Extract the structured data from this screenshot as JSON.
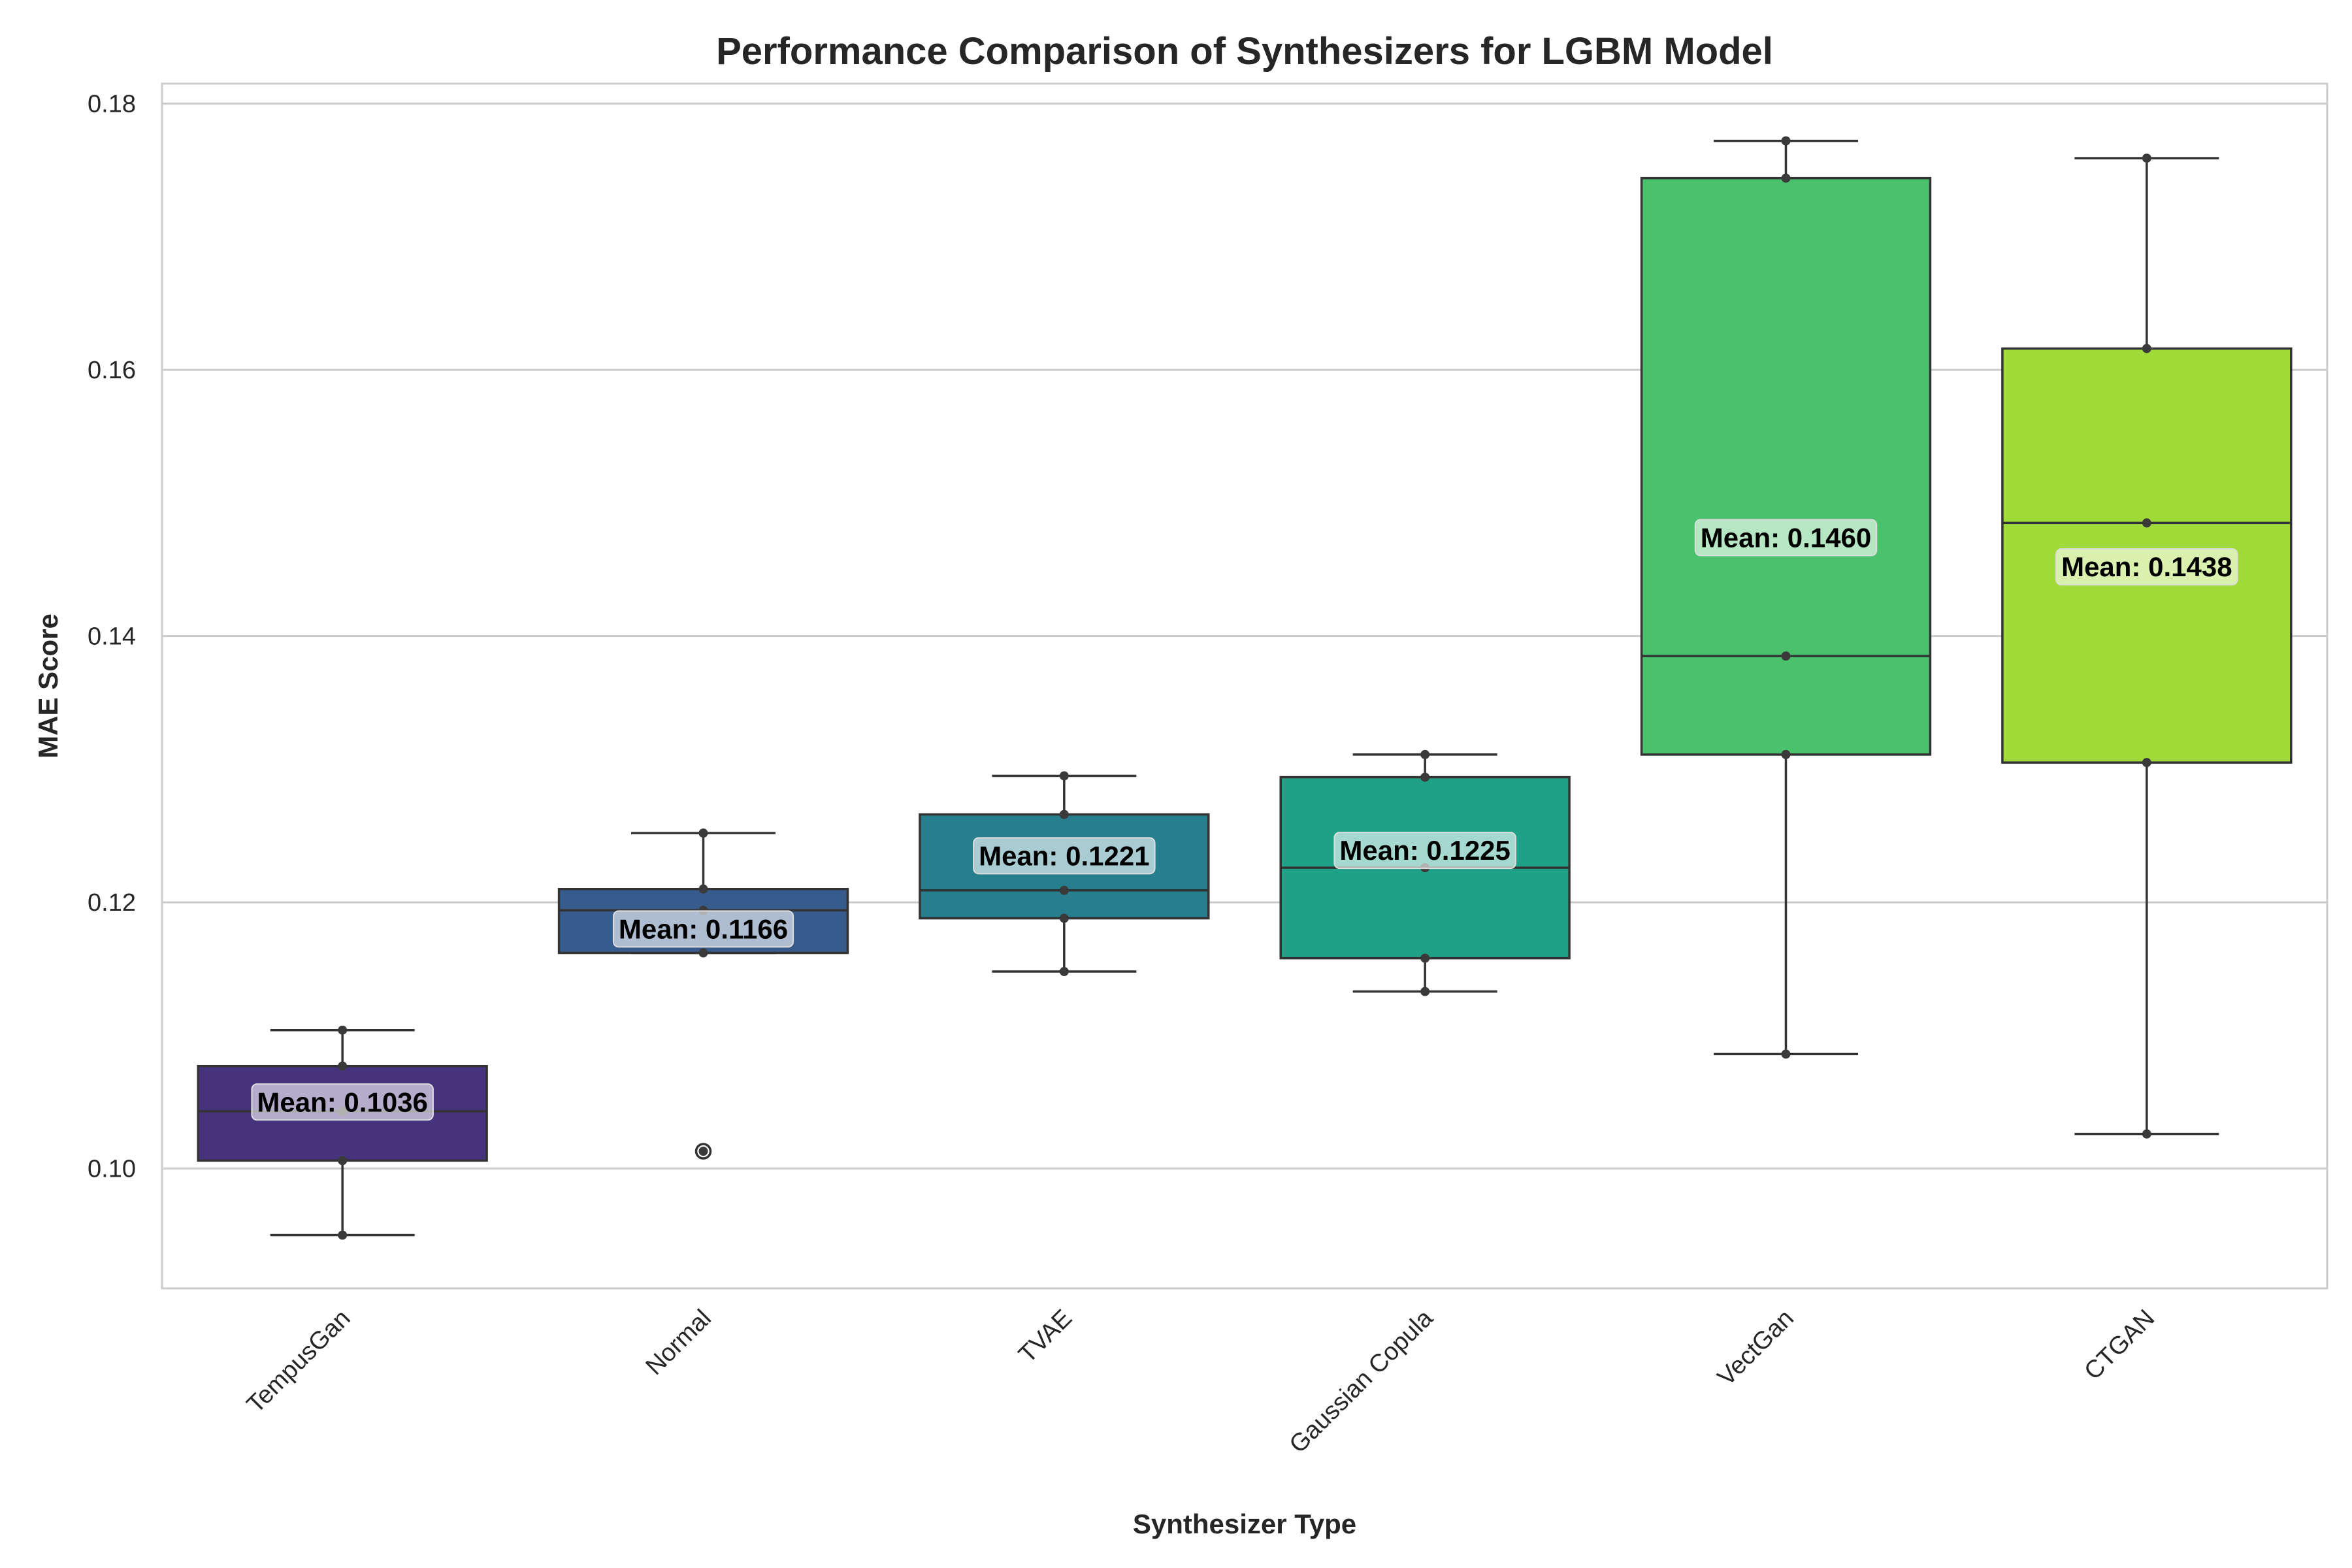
{
  "chart_data": {
    "type": "box",
    "title": "Performance Comparison of Synthesizers for LGBM Model",
    "xlabel": "Synthesizer Type",
    "ylabel": "MAE Score",
    "ylim": [
      0.091,
      0.1815
    ],
    "yticks": [
      0.1,
      0.12,
      0.14,
      0.16,
      0.18
    ],
    "ytick_labels": [
      "0.10",
      "0.12",
      "0.14",
      "0.16",
      "0.18"
    ],
    "grid": true,
    "categories": [
      "TempusGan",
      "Normal",
      "TVAE",
      "Gaussian Copula",
      "VectGan",
      "CTGAN"
    ],
    "boxes": [
      {
        "name": "TempusGan",
        "color": "#46337e",
        "whisker_low": 0.095,
        "q1": 0.1006,
        "median": 0.1043,
        "q3": 0.1077,
        "whisker_high": 0.1104,
        "outliers": [],
        "points": [
          0.095,
          0.1006,
          0.1043,
          0.1077,
          0.1104
        ],
        "mean_label": "Mean: 0.1036",
        "mean": 0.1036
      },
      {
        "name": "Normal",
        "color": "#365b8c",
        "whisker_low": 0.1162,
        "q1": 0.1162,
        "median": 0.1194,
        "q3": 0.121,
        "whisker_high": 0.1252,
        "outliers": [
          0.1013
        ],
        "points": [
          0.1013,
          0.1162,
          0.1194,
          0.121,
          0.1252
        ],
        "mean_label": "Mean: 0.1166",
        "mean": 0.1166
      },
      {
        "name": "TVAE",
        "color": "#277f8e",
        "whisker_low": 0.1148,
        "q1": 0.1188,
        "median": 0.1209,
        "q3": 0.1266,
        "whisker_high": 0.1295,
        "outliers": [],
        "points": [
          0.1148,
          0.1188,
          0.1209,
          0.1266,
          0.1295
        ],
        "mean_label": "Mean: 0.1221",
        "mean": 0.1221
      },
      {
        "name": "Gaussian Copula",
        "color": "#1fa187",
        "whisker_low": 0.1133,
        "q1": 0.1158,
        "median": 0.1226,
        "q3": 0.1294,
        "whisker_high": 0.1311,
        "outliers": [],
        "points": [
          0.1133,
          0.1158,
          0.1226,
          0.1294,
          0.1311
        ],
        "mean_label": "Mean: 0.1225",
        "mean": 0.1225
      },
      {
        "name": "VectGan",
        "color": "#4ac16d",
        "whisker_low": 0.1086,
        "q1": 0.1311,
        "median": 0.1385,
        "q3": 0.1744,
        "whisker_high": 0.1772,
        "outliers": [],
        "points": [
          0.1086,
          0.1311,
          0.1385,
          0.1744,
          0.1772
        ],
        "mean_label": "Mean: 0.1460",
        "mean": 0.146
      },
      {
        "name": "CTGAN",
        "color": "#a0da39",
        "whisker_low": 0.1026,
        "q1": 0.1305,
        "median": 0.1485,
        "q3": 0.1616,
        "whisker_high": 0.1759,
        "outliers": [],
        "points": [
          0.1026,
          0.1305,
          0.1485,
          0.1616,
          0.1759
        ],
        "mean_label": "Mean: 0.1438",
        "mean": 0.1438
      }
    ]
  }
}
